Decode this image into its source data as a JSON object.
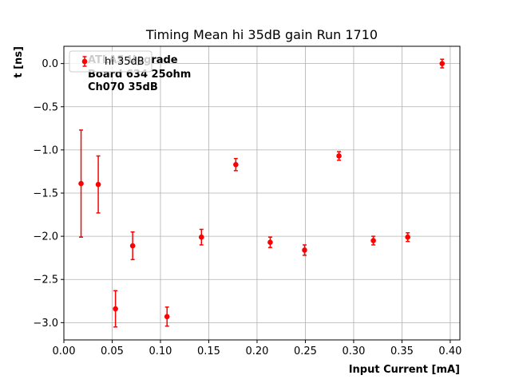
{
  "chart_data": {
    "type": "scatter",
    "title": "Timing Mean hi 35dB gain Run 1710",
    "xlabel": "Input Current [mA]",
    "ylabel": "t [ns]",
    "xlim": [
      0.0,
      0.41
    ],
    "ylim": [
      -3.2,
      0.2
    ],
    "xticks": [
      0.0,
      0.05,
      0.1,
      0.15,
      0.2,
      0.25,
      0.3,
      0.35,
      0.4
    ],
    "xtick_labels": [
      "0.00",
      "0.05",
      "0.10",
      "0.15",
      "0.20",
      "0.25",
      "0.30",
      "0.35",
      "0.40"
    ],
    "yticks": [
      0.0,
      -0.5,
      -1.0,
      -1.5,
      -2.0,
      -2.5,
      -3.0
    ],
    "ytick_labels": [
      "0.0",
      "−0.5",
      "−1.0",
      "−1.5",
      "−2.0",
      "−2.5",
      "−3.0"
    ],
    "grid": true,
    "legend_position": "top-left",
    "annotation_lines": [
      "ATLAS Upgrade",
      "Board 634 25ohm",
      "Ch070 35dB"
    ],
    "series": [
      {
        "name": "hi 35dB",
        "color": "#ff0000",
        "marker": "circle",
        "x": [
          0.0178,
          0.0356,
          0.0534,
          0.0712,
          0.1068,
          0.1424,
          0.178,
          0.2136,
          0.2492,
          0.2848,
          0.3204,
          0.356,
          0.3916
        ],
        "y": [
          -1.39,
          -1.4,
          -2.84,
          -2.11,
          -2.93,
          -2.01,
          -1.17,
          -2.07,
          -2.16,
          -1.07,
          -2.05,
          -2.01,
          0.0
        ],
        "yerr": [
          0.62,
          0.33,
          0.21,
          0.16,
          0.11,
          0.09,
          0.07,
          0.06,
          0.06,
          0.05,
          0.05,
          0.05,
          0.05
        ]
      }
    ]
  }
}
